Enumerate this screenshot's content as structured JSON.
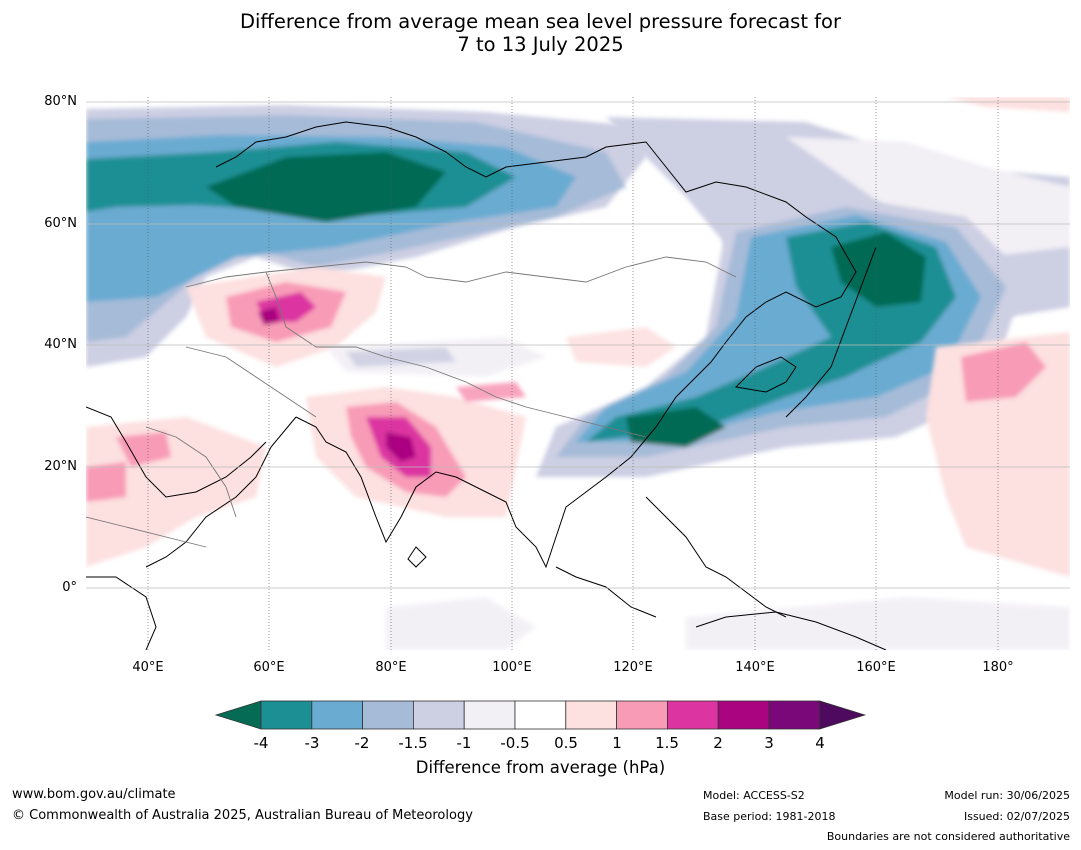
{
  "title": {
    "line1": "Difference from average mean sea level pressure forecast for",
    "line2": "7 to 13 July 2025"
  },
  "map": {
    "lat_labels": [
      "80°N",
      "60°N",
      "40°N",
      "20°N",
      "0°"
    ],
    "lon_labels": [
      "40°E",
      "60°E",
      "80°E",
      "100°E",
      "120°E",
      "140°E",
      "160°E",
      "180°"
    ],
    "lat_range": [
      -10,
      81
    ],
    "lon_range": [
      30,
      190
    ]
  },
  "colorbar": {
    "ticks": [
      "-4",
      "-3",
      "-2",
      "-1.5",
      "-1",
      "-0.5",
      "0.5",
      "1",
      "1.5",
      "2",
      "3",
      "4"
    ],
    "colors": [
      "#1b8f94",
      "#6aabd2",
      "#a6bbd8",
      "#cdcfe3",
      "#f2eff5",
      "#ffffff",
      "#fde0e0",
      "#f89bb7",
      "#dc35a1",
      "#ab0481",
      "#7b0878"
    ],
    "low_extend_color": "#066b54",
    "high_extend_color": "#4e0a5e",
    "label": "Difference from average (hPa)"
  },
  "footer": {
    "url": "www.bom.gov.au/climate",
    "copyright": "© Commonwealth of Australia 2025, Australian Bureau of Meteorology",
    "model": "Model: ACCESS-S2",
    "base_period": "Base period: 1981-2018",
    "model_run": "Model run: 30/06/2025",
    "issued": "Issued: 02/07/2025",
    "boundaries_note": "Boundaries are not considered authoritative"
  }
}
